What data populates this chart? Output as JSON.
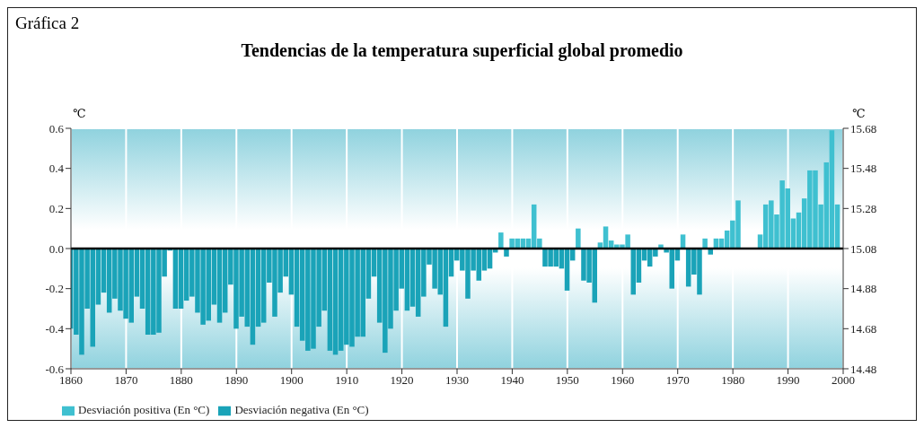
{
  "chart_data": {
    "type": "bar",
    "title": "Tendencias de la temperatura superficial global promedio",
    "ylabel": "℃",
    "y2label": "℃",
    "annotations": [
      "Gráfica 2"
    ],
    "x": [
      1860,
      1861,
      1862,
      1863,
      1864,
      1865,
      1866,
      1867,
      1868,
      1869,
      1870,
      1871,
      1872,
      1873,
      1874,
      1875,
      1876,
      1877,
      1878,
      1879,
      1880,
      1881,
      1882,
      1883,
      1884,
      1885,
      1886,
      1887,
      1888,
      1889,
      1890,
      1891,
      1892,
      1893,
      1894,
      1895,
      1896,
      1897,
      1898,
      1899,
      1900,
      1901,
      1902,
      1903,
      1904,
      1905,
      1906,
      1907,
      1908,
      1909,
      1910,
      1911,
      1912,
      1913,
      1914,
      1915,
      1916,
      1917,
      1918,
      1919,
      1920,
      1921,
      1922,
      1923,
      1924,
      1925,
      1926,
      1927,
      1928,
      1929,
      1930,
      1931,
      1932,
      1933,
      1934,
      1935,
      1936,
      1937,
      1938,
      1939,
      1940,
      1941,
      1942,
      1943,
      1944,
      1945,
      1946,
      1947,
      1948,
      1949,
      1950,
      1951,
      1952,
      1953,
      1954,
      1955,
      1956,
      1957,
      1958,
      1959,
      1960,
      1961,
      1962,
      1963,
      1964,
      1965,
      1966,
      1967,
      1968,
      1969,
      1970,
      1971,
      1972,
      1973,
      1974,
      1975,
      1976,
      1977,
      1978,
      1979,
      1980,
      1981,
      1982,
      1983,
      1984,
      1985,
      1986,
      1987,
      1988,
      1989,
      1990,
      1991,
      1992,
      1993,
      1994,
      1995,
      1996,
      1997,
      1998,
      1999
    ],
    "series": [
      {
        "name": "Desviación positiva (En °C)",
        "color": "#3fc0d0",
        "values": [
          null,
          null,
          null,
          null,
          null,
          null,
          null,
          null,
          null,
          null,
          null,
          null,
          null,
          null,
          null,
          null,
          null,
          null,
          null,
          null,
          null,
          null,
          null,
          null,
          null,
          null,
          null,
          null,
          null,
          null,
          null,
          null,
          null,
          null,
          null,
          null,
          null,
          null,
          null,
          null,
          null,
          null,
          null,
          null,
          null,
          null,
          null,
          null,
          null,
          null,
          null,
          null,
          null,
          null,
          null,
          null,
          null,
          null,
          null,
          null,
          null,
          null,
          null,
          null,
          null,
          null,
          null,
          null,
          null,
          null,
          null,
          null,
          null,
          null,
          null,
          null,
          null,
          null,
          0.08,
          null,
          0.05,
          0.05,
          0.05,
          0.05,
          0.22,
          0.05,
          null,
          null,
          null,
          null,
          null,
          null,
          0.1,
          null,
          null,
          null,
          0.03,
          0.11,
          0.04,
          0.02,
          0.02,
          0.07,
          null,
          null,
          null,
          null,
          null,
          0.02,
          null,
          null,
          null,
          0.07,
          null,
          null,
          null,
          0.05,
          null,
          0.05,
          0.05,
          0.09,
          0.14,
          0.24,
          null,
          null,
          null,
          0.07,
          0.22,
          0.24,
          0.17,
          0.34,
          0.3,
          0.15,
          0.18,
          0.25,
          0.39,
          0.39,
          0.22,
          0.43,
          0.59,
          0.22
        ]
      },
      {
        "name": "Desviación negativa (En °C)",
        "color": "#1aa3b8",
        "values": [
          -0.4,
          -0.43,
          -0.53,
          -0.3,
          -0.49,
          -0.28,
          -0.22,
          -0.32,
          -0.25,
          -0.31,
          -0.35,
          -0.37,
          -0.24,
          -0.3,
          -0.43,
          -0.43,
          -0.42,
          -0.14,
          -0.01,
          -0.3,
          -0.3,
          -0.26,
          -0.24,
          -0.32,
          -0.38,
          -0.36,
          -0.28,
          -0.37,
          -0.32,
          -0.18,
          -0.4,
          -0.34,
          -0.39,
          -0.48,
          -0.39,
          -0.37,
          -0.17,
          -0.34,
          -0.22,
          -0.14,
          -0.23,
          -0.39,
          -0.46,
          -0.51,
          -0.5,
          -0.39,
          -0.31,
          -0.51,
          -0.53,
          -0.51,
          -0.48,
          -0.49,
          -0.44,
          -0.44,
          -0.25,
          -0.14,
          -0.37,
          -0.52,
          -0.4,
          -0.31,
          -0.2,
          -0.31,
          -0.29,
          -0.34,
          -0.24,
          -0.08,
          -0.2,
          -0.23,
          -0.39,
          -0.14,
          -0.06,
          -0.11,
          -0.25,
          -0.11,
          -0.16,
          -0.11,
          -0.1,
          -0.02,
          null,
          -0.04,
          null,
          null,
          null,
          null,
          null,
          null,
          -0.09,
          -0.09,
          -0.09,
          -0.1,
          -0.21,
          -0.06,
          null,
          -0.16,
          -0.17,
          -0.27,
          null,
          null,
          null,
          null,
          null,
          null,
          -0.23,
          -0.17,
          -0.06,
          -0.09,
          -0.04,
          null,
          -0.02,
          -0.2,
          -0.06,
          null,
          -0.19,
          -0.13,
          -0.23,
          null,
          -0.03,
          null,
          null,
          null,
          null,
          null,
          null,
          null,
          null,
          null,
          null,
          null,
          null,
          null,
          null,
          null,
          null,
          null,
          null,
          null,
          null,
          null,
          null,
          null
        ]
      }
    ],
    "xlim": [
      1860,
      2000
    ],
    "xticks": [
      1860,
      1870,
      1880,
      1890,
      1900,
      1910,
      1920,
      1930,
      1940,
      1950,
      1960,
      1970,
      1980,
      1990,
      2000
    ],
    "ylim": [
      -0.6,
      0.6
    ],
    "yticks": [
      {
        "value": -0.6,
        "label": "-0.6"
      },
      {
        "value": -0.4,
        "label": "-0.4"
      },
      {
        "value": -0.2,
        "label": "-0.2"
      },
      {
        "value": 0,
        "label": "0.0"
      },
      {
        "value": 0.2,
        "label": "0.2"
      },
      {
        "value": 0.4,
        "label": "0.4"
      },
      {
        "value": 0.6,
        "label": "0.6"
      }
    ],
    "y2lim": [
      14.48,
      15.68
    ],
    "y2ticks": [
      14.48,
      14.68,
      14.88,
      15.08,
      15.28,
      15.48,
      15.68
    ],
    "ref_lines": [
      {
        "axis": "y",
        "value": 0,
        "color": "#000000"
      }
    ],
    "grid": true,
    "legend": "bottom left"
  }
}
